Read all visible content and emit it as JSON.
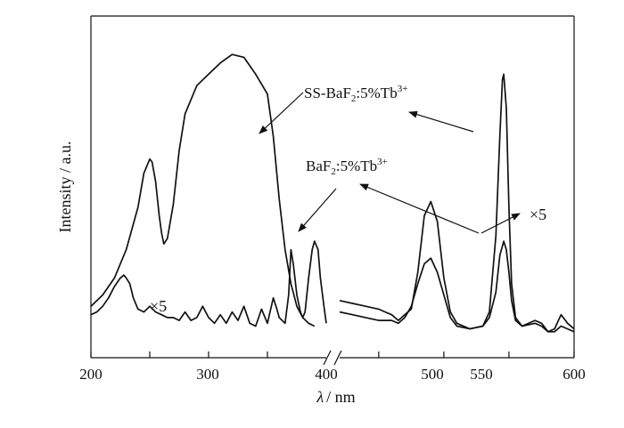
{
  "chart_data": {
    "type": "line",
    "ylabel": "Intensity / a.u.",
    "xlabel": {
      "symbol": "λ",
      "unit": "/ nm"
    },
    "axis_break": true,
    "panels": [
      {
        "xlim": [
          200,
          400
        ],
        "ticks": [
          200,
          250,
          300,
          350
        ]
      },
      {
        "xlim": [
          420,
          600
        ],
        "ticks": [
          450,
          500,
          550,
          600
        ]
      }
    ],
    "tick_labels": [
      "200",
      "300",
      "400",
      "500",
      "550",
      "600"
    ],
    "ylim": [
      0,
      1
    ],
    "series": [
      {
        "name": "SS-BaF2:5%Tb3+",
        "segments": [
          {
            "x": [
              200,
              210,
              220,
              230,
              240,
              245,
              250,
              252,
              255,
              258,
              260,
              262,
              265,
              270,
              275,
              280,
              290,
              300,
              310,
              320,
              330,
              340,
              350,
              355,
              360,
              365,
              370,
              375,
              380,
              385,
              390
            ],
            "y": [
              0.1,
              0.14,
              0.2,
              0.3,
              0.45,
              0.57,
              0.62,
              0.61,
              0.54,
              0.42,
              0.36,
              0.32,
              0.34,
              0.46,
              0.65,
              0.78,
              0.88,
              0.92,
              0.96,
              0.99,
              0.98,
              0.92,
              0.85,
              0.7,
              0.48,
              0.3,
              0.18,
              0.1,
              0.06,
              0.04,
              0.03
            ]
          },
          {
            "x": [
              420,
              430,
              440,
              450,
              455,
              460,
              465,
              470,
              475,
              480,
              485,
              490,
              495,
              500,
              505,
              510,
              520,
              530,
              535,
              540,
              543,
              545,
              546,
              548,
              550,
              552,
              555,
              560,
              570,
              575,
              580,
              585,
              590,
              595,
              600
            ],
            "y": [
              0.12,
              0.11,
              0.1,
              0.09,
              0.08,
              0.07,
              0.05,
              0.07,
              0.09,
              0.22,
              0.42,
              0.47,
              0.4,
              0.2,
              0.08,
              0.04,
              0.02,
              0.03,
              0.08,
              0.35,
              0.7,
              0.9,
              0.92,
              0.8,
              0.45,
              0.18,
              0.06,
              0.03,
              0.05,
              0.04,
              0.01,
              0.02,
              0.07,
              0.04,
              0.02
            ]
          }
        ]
      },
      {
        "name": "BaF2:5%Tb3+",
        "segments": [
          {
            "x": [
              200,
              205,
              210,
              215,
              220,
              225,
              228,
              230,
              233,
              236,
              240,
              245,
              250,
              255,
              260,
              265,
              270,
              275,
              280,
              285,
              290,
              295,
              300,
              305,
              310,
              315,
              320,
              325,
              330,
              335,
              340,
              345,
              350,
              355,
              358,
              360,
              365,
              368,
              370,
              372,
              375,
              378,
              380,
              382,
              385,
              388,
              390,
              393,
              395,
              398,
              400
            ],
            "y": [
              0.07,
              0.08,
              0.1,
              0.13,
              0.17,
              0.2,
              0.21,
              0.2,
              0.18,
              0.13,
              0.09,
              0.08,
              0.1,
              0.08,
              0.07,
              0.06,
              0.06,
              0.05,
              0.08,
              0.05,
              0.06,
              0.1,
              0.06,
              0.04,
              0.07,
              0.04,
              0.08,
              0.05,
              0.1,
              0.04,
              0.03,
              0.09,
              0.04,
              0.13,
              0.09,
              0.06,
              0.04,
              0.14,
              0.3,
              0.25,
              0.14,
              0.08,
              0.06,
              0.08,
              0.2,
              0.3,
              0.33,
              0.3,
              0.2,
              0.1,
              0.04
            ]
          },
          {
            "x": [
              420,
              430,
              440,
              450,
              460,
              465,
              470,
              475,
              480,
              485,
              490,
              495,
              500,
              505,
              510,
              520,
              530,
              535,
              540,
              543,
              546,
              548,
              550,
              552,
              555,
              560,
              570,
              575,
              580,
              585,
              590,
              595,
              600
            ],
            "y": [
              0.08,
              0.07,
              0.06,
              0.05,
              0.05,
              0.04,
              0.06,
              0.1,
              0.18,
              0.25,
              0.27,
              0.22,
              0.14,
              0.06,
              0.03,
              0.02,
              0.03,
              0.06,
              0.15,
              0.28,
              0.33,
              0.3,
              0.22,
              0.12,
              0.05,
              0.03,
              0.04,
              0.03,
              0.01,
              0.01,
              0.03,
              0.02,
              0.01
            ]
          }
        ]
      }
    ],
    "annotations": [
      {
        "kind": "multiplier",
        "text": "×5",
        "near": "BaF2 series, 230–250 nm"
      },
      {
        "kind": "multiplier",
        "text": "×5",
        "near": "BaF2 series, 550 nm peak"
      }
    ]
  }
}
